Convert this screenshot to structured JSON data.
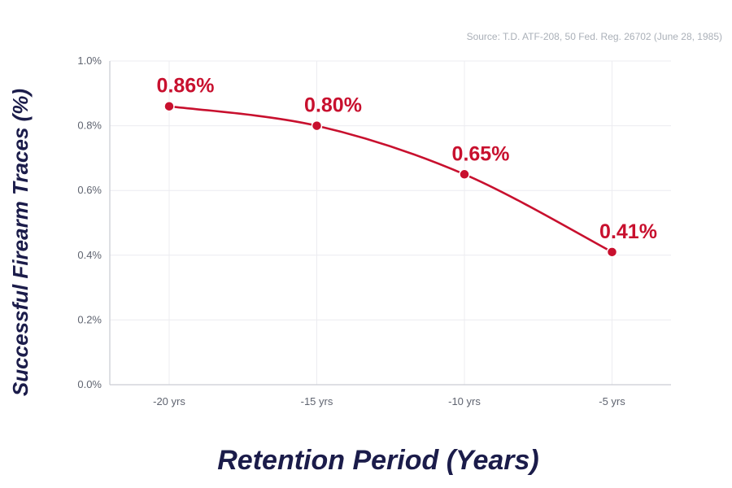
{
  "chart_data": {
    "type": "line",
    "source": "Source: T.D. ATF-208, 50 Fed. Reg. 26702 (June 28, 1985)",
    "xlabel": "Retention Period (Years)",
    "ylabel": "Successful Firearm Traces (%)",
    "categories": [
      "-20 yrs",
      "-15 yrs",
      "-10 yrs",
      "-5 yrs"
    ],
    "series": [
      {
        "name": "Successful Firearm Traces",
        "values": [
          0.86,
          0.8,
          0.65,
          0.41
        ],
        "labels": [
          "0.86%",
          "0.80%",
          "0.65%",
          "0.41%"
        ]
      }
    ],
    "ylim": [
      0,
      1.0
    ],
    "yticks": [
      {
        "value": 0.0,
        "label": "0.0%"
      },
      {
        "value": 0.2,
        "label": "0.2%"
      },
      {
        "value": 0.4,
        "label": "0.4%"
      },
      {
        "value": 0.6,
        "label": "0.6%"
      },
      {
        "value": 0.8,
        "label": "0.8%"
      },
      {
        "value": 1.0,
        "label": "1.0%"
      }
    ],
    "colors": {
      "series": "#c8102e",
      "axis_title": "#1b1c4a"
    }
  }
}
